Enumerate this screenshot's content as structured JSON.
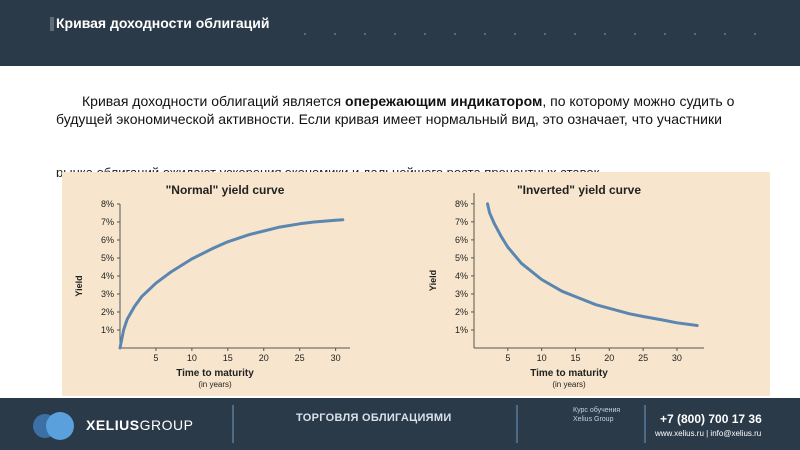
{
  "header": {
    "title": "Кривая доходности облигаций"
  },
  "content": {
    "p1_before": "Кривая доходности облигаций является ",
    "p1_bold": "опережающим индикатором",
    "p1_after": ", по которому можно судить о",
    "p2": "будущей экономической активности. Если кривая имеет нормальный вид, это означает, что участники",
    "p3": "рынка облигаций ожидают ускорения экономики и дальнейшего роста процентных ставок."
  },
  "chart_data": [
    {
      "type": "line",
      "title": "\"Normal\" yield curve",
      "xlabel": "Time to maturity",
      "xlabel_sub": "(in years)",
      "ylabel": "Yield",
      "x_ticks": [
        "5",
        "10",
        "15",
        "20",
        "25",
        "30"
      ],
      "y_ticks": [
        "1%",
        "2%",
        "3%",
        "4%",
        "5%",
        "6%",
        "7%",
        "8%"
      ],
      "xlim": [
        0,
        32
      ],
      "ylim": [
        0,
        8
      ],
      "x": [
        0,
        0.5,
        1,
        2,
        3,
        5,
        7,
        10,
        13,
        15,
        18,
        20,
        22,
        25,
        27,
        30,
        31
      ],
      "y": [
        0,
        1.0,
        1.6,
        2.3,
        2.85,
        3.6,
        4.2,
        4.95,
        5.55,
        5.9,
        6.3,
        6.5,
        6.7,
        6.9,
        7.0,
        7.1,
        7.12
      ],
      "color": "#5b86b0",
      "grid": false
    },
    {
      "type": "line",
      "title": "\"Inverted\" yield curve",
      "xlabel": "Time to maturity",
      "xlabel_sub": "(in years)",
      "ylabel": "Yield",
      "x_ticks": [
        "5",
        "10",
        "15",
        "20",
        "25",
        "30"
      ],
      "y_ticks": [
        "1%",
        "2%",
        "3%",
        "4%",
        "5%",
        "6%",
        "7%",
        "8%"
      ],
      "xlim": [
        0,
        34
      ],
      "ylim": [
        0,
        8.6
      ],
      "x": [
        2,
        2.3,
        3,
        4,
        5,
        7,
        10,
        13,
        15,
        18,
        20,
        23,
        25,
        28,
        30,
        33
      ],
      "y": [
        8.0,
        7.5,
        6.9,
        6.2,
        5.6,
        4.7,
        3.8,
        3.15,
        2.85,
        2.4,
        2.2,
        1.9,
        1.75,
        1.55,
        1.4,
        1.25
      ],
      "color": "#5b86b0",
      "grid": false
    }
  ],
  "footer": {
    "brand_bold": "XELIUS",
    "brand_light": "GROUP",
    "course": "ТОРГОВЛЯ ОБЛИГАЦИЯМИ",
    "kurs_line1": "Курс обучения",
    "kurs_line2": "Xelius Group",
    "phone": "+7 (800) 700 17 36",
    "web": "www.xelius.ru | info@xelius.ru"
  }
}
